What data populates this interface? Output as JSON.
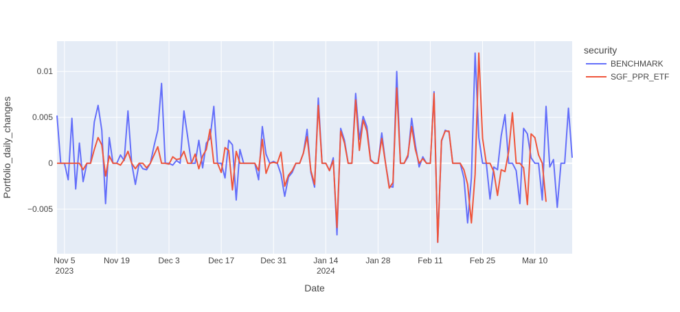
{
  "chart_data": {
    "type": "line",
    "title": "",
    "xlabel": "Date",
    "ylabel": "Portfolio_daily_changes",
    "x_start": "2023-11-03",
    "x_step_days": 1,
    "xlim": [
      "2023-11-03",
      "2024-03-20"
    ],
    "ylim": [
      -0.00985,
      0.0133
    ],
    "grid": true,
    "y_ticks": [
      {
        "value": -0.005,
        "label": "−0.005"
      },
      {
        "value": 0,
        "label": "0"
      },
      {
        "value": 0.005,
        "label": "0.005"
      },
      {
        "value": 0.01,
        "label": "0.01"
      }
    ],
    "x_ticks": [
      {
        "date": "2023-11-05",
        "label": "Nov 5",
        "sub": "2023"
      },
      {
        "date": "2023-11-19",
        "label": "Nov 19",
        "sub": ""
      },
      {
        "date": "2023-12-03",
        "label": "Dec 3",
        "sub": ""
      },
      {
        "date": "2023-12-17",
        "label": "Dec 17",
        "sub": ""
      },
      {
        "date": "2023-12-31",
        "label": "Dec 31",
        "sub": ""
      },
      {
        "date": "2024-01-14",
        "label": "Jan 14",
        "sub": "2024"
      },
      {
        "date": "2024-01-28",
        "label": "Jan 28",
        "sub": ""
      },
      {
        "date": "2024-02-11",
        "label": "Feb 11",
        "sub": ""
      },
      {
        "date": "2024-02-25",
        "label": "Feb 25",
        "sub": ""
      },
      {
        "date": "2024-03-10",
        "label": "Mar 10",
        "sub": ""
      }
    ],
    "legend": {
      "title": "security",
      "placement": "right"
    },
    "series": [
      {
        "name": "BENCHMARK",
        "color": "#636efa",
        "values": [
          0.0052,
          0,
          0,
          -0.0018,
          0.0049,
          -0.0028,
          0.0022,
          -0.002,
          0,
          0,
          0.0045,
          0.0063,
          0.0036,
          -0.0044,
          0.0028,
          0,
          0,
          0.0009,
          0.0003,
          0.0057,
          0,
          -0.0023,
          0,
          -0.0006,
          -0.0007,
          0,
          0.0019,
          0.0036,
          0.0087,
          0,
          0,
          -0.0002,
          0.0003,
          0,
          0.0057,
          0.0029,
          0,
          0,
          0.0025,
          -0.0005,
          0.0022,
          0.0027,
          0.0062,
          0,
          0,
          -0.0016,
          0.0025,
          0.002,
          -0.004,
          0.0015,
          0,
          0,
          0,
          0,
          -0.0018,
          0.004,
          0.001,
          0,
          0.0002,
          0,
          -0.0012,
          -0.0036,
          -0.0015,
          -0.001,
          0,
          0,
          0.0011,
          0.0037,
          -0.001,
          -0.0026,
          0.0071,
          0,
          0,
          -0.0008,
          0.0006,
          -0.0078,
          0.0038,
          0.0025,
          0,
          0,
          0.0076,
          0.0026,
          0.0051,
          0.004,
          0.0004,
          0,
          0,
          0.0033,
          0,
          -0.0025,
          -0.0026,
          0.01,
          0,
          0,
          0.0007,
          0.0049,
          0.002,
          -0.0004,
          0.0007,
          0,
          0,
          0.0078,
          -0.0086,
          0.0024,
          0.0036,
          0.0034,
          0,
          0,
          0,
          -0.0016,
          -0.0065,
          -0.0016,
          0.012,
          0.0028,
          0,
          0,
          -0.0039,
          -0.0004,
          -0.0007,
          0.003,
          0.0053,
          0,
          0,
          -0.0008,
          -0.0044,
          0.0038,
          0.0032,
          0.0006,
          0,
          0,
          -0.004,
          0.0062,
          -0.0004,
          0.0004,
          -0.0048,
          0,
          0,
          0.006,
          0.0006
        ]
      },
      {
        "name": "SGF_PPR_ETF",
        "color": "#ef553b",
        "values": [
          0,
          0,
          0,
          0,
          0,
          0,
          0,
          -0.0007,
          0,
          0,
          0.0015,
          0.0028,
          0.002,
          -0.0014,
          0.0008,
          0,
          0,
          -0.0002,
          0.0004,
          0.0013,
          0,
          -0.0006,
          0,
          0,
          -0.0005,
          0,
          0.0009,
          0.0018,
          0,
          0,
          -0.0001,
          0.0007,
          0.0004,
          0.0005,
          0.0013,
          0,
          0,
          0.001,
          -0.0006,
          0.0008,
          0.0015,
          0.0037,
          0,
          0,
          -0.001,
          0.0017,
          0.0014,
          -0.0029,
          0.0013,
          0,
          0,
          0,
          0,
          0,
          -0.0008,
          0.0026,
          -0.0011,
          0,
          0.0001,
          0,
          0.0012,
          -0.0025,
          -0.0013,
          -0.0008,
          0,
          0,
          0.0011,
          0.0029,
          -0.0008,
          -0.0023,
          0.0063,
          0,
          0,
          -0.0008,
          0.0003,
          -0.007,
          0.0035,
          0.0022,
          0,
          0,
          0.0069,
          0.0014,
          0.0047,
          0.0035,
          0.0003,
          0,
          0,
          0.0027,
          0,
          -0.0027,
          -0.0021,
          0.0082,
          0,
          0,
          0.0009,
          0.004,
          0.0015,
          0,
          0.0005,
          0,
          0,
          0.0076,
          -0.0086,
          0.0025,
          0.0035,
          0.0035,
          0,
          0,
          0,
          -0.0007,
          -0.0023,
          -0.0065,
          -0.0012,
          0.012,
          0.0027,
          0,
          0,
          -0.0009,
          -0.0035,
          -0.0007,
          -0.0009,
          0.0013,
          0.0055,
          0,
          0,
          -0.0005,
          -0.0045,
          0.0032,
          0.0028,
          0.0009,
          0,
          -0.0042,
          null,
          null,
          null,
          null,
          null,
          null,
          null
        ]
      }
    ]
  }
}
